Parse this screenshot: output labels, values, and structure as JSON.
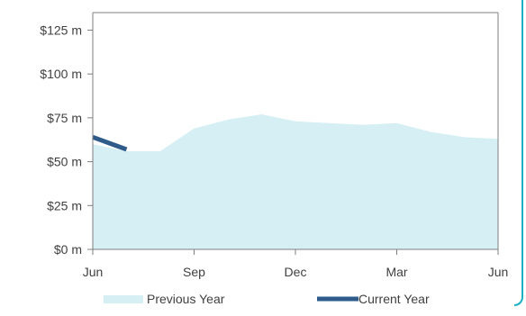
{
  "chart_data": {
    "type": "area",
    "title": "",
    "xlabel": "",
    "ylabel": "",
    "ylim": [
      0,
      135
    ],
    "y_ticks": [
      "$0 m",
      "$25 m",
      "$50 m",
      "$75 m",
      "$100 m",
      "$125 m"
    ],
    "y_tick_values": [
      0,
      25,
      50,
      75,
      100,
      125
    ],
    "x_ticks": [
      "Jun",
      "Sep",
      "Dec",
      "Mar",
      "Jun"
    ],
    "x_tick_positions": [
      0,
      3,
      6,
      9,
      12
    ],
    "xlim": [
      0,
      12
    ],
    "legend_position": "bottom",
    "grid": false,
    "series": [
      {
        "name": "Previous Year",
        "type": "area",
        "color": "#d6eff5",
        "x": [
          0,
          1,
          2,
          3,
          4,
          5,
          6,
          7,
          8,
          9,
          10,
          11,
          12
        ],
        "values": [
          60,
          56,
          56,
          69,
          74,
          77,
          73,
          72,
          71,
          72,
          67,
          64,
          63
        ]
      },
      {
        "name": "Current Year",
        "type": "line",
        "color": "#2e5b8a",
        "x": [
          0,
          1
        ],
        "values": [
          64,
          57
        ]
      }
    ]
  }
}
